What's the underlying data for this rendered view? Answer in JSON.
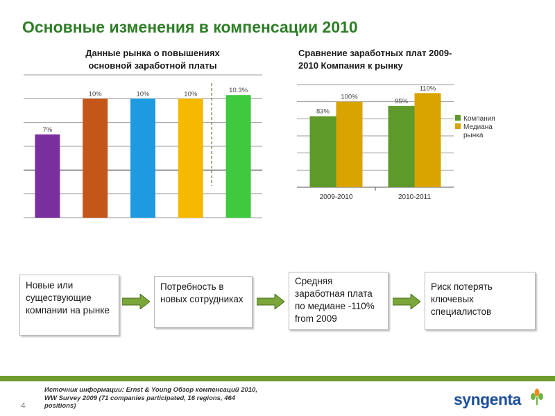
{
  "title": "Основные изменения в компенсации 2010",
  "chart_data": [
    {
      "type": "bar",
      "title": "Данные рынка о повышениях основной заработной платы",
      "title_lines": [
        "Данные рынка о повышениях",
        "основной заработной платы"
      ],
      "categories": [
        "",
        "",
        "",
        "",
        ""
      ],
      "values": [
        7,
        10,
        10,
        10,
        10.3
      ],
      "labels": [
        "7%",
        "10%",
        "10%",
        "10%",
        "10.3%"
      ],
      "colors": [
        "#7a2f9e",
        "#c4561a",
        "#1e9be0",
        "#f7b800",
        "#3ec93e"
      ],
      "ylim": [
        0,
        12
      ],
      "grid": true
    },
    {
      "type": "bar",
      "title": "Сравнение заработных плат 2009-2010 Компания к рынку",
      "title_lines": [
        "Сравнение заработных плат 2009-",
        "2010 Компания к рынку"
      ],
      "categories": [
        "2009-2010",
        "2010-2011"
      ],
      "series": [
        {
          "name": "Компания",
          "values": [
            83,
            95
          ],
          "labels": [
            "83%",
            "95%"
          ],
          "color": "#5e9a2a"
        },
        {
          "name": "Медиана рынка",
          "values": [
            100,
            110
          ],
          "labels": [
            "100%",
            "110%"
          ],
          "color": "#d9a300"
        }
      ],
      "legend": [
        "Компания",
        "Медиана",
        "рынка"
      ],
      "ylim": [
        0,
        120
      ],
      "legend_position": "right",
      "grid": true
    }
  ],
  "flow": [
    {
      "text": "Новые или существующие компании на рынке"
    },
    {
      "text": "Потребность в новых сотрудниках"
    },
    {
      "text": "Средняя заработная плата по медиане -110% from 2009"
    },
    {
      "text": "Риск потерять ключевых специалистов"
    }
  ],
  "footer": {
    "page_number": "4",
    "source_line1": "Источник информации: Ernst & Young Обзор компенсаций 2010,",
    "source_line2": "WW Survey 2009 (71 companies participated, 16 regions, 464",
    "source_line3": "positions)",
    "logo": "syngenta"
  },
  "colors": {
    "title": "#2e7d27",
    "band": "#6f9a2c",
    "arrow": "#7aa63a",
    "logo": "#1d4e9e"
  }
}
